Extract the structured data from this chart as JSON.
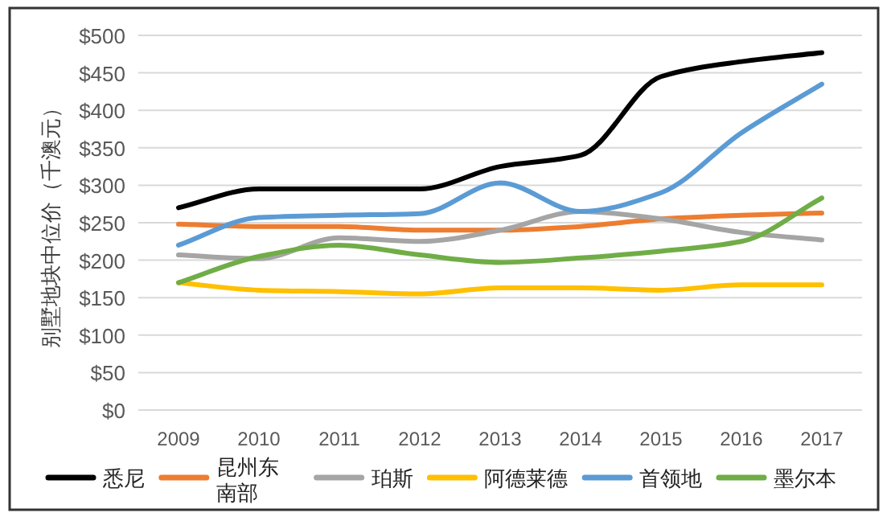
{
  "chart_data": {
    "type": "line",
    "ylabel": "别墅地块中位价（千澳元）",
    "categories": [
      "2009",
      "2010",
      "2011",
      "2012",
      "2013",
      "2014",
      "2015",
      "2016",
      "2017"
    ],
    "series": [
      {
        "name": "悉尼",
        "color": "#000000",
        "values": [
          270,
          295,
          295,
          295,
          325,
          340,
          445,
          465,
          477
        ]
      },
      {
        "name": "昆州东南部",
        "color": "#ed7d31",
        "values": [
          248,
          245,
          245,
          240,
          240,
          245,
          255,
          260,
          263
        ]
      },
      {
        "name": "珀斯",
        "color": "#a5a5a5",
        "values": [
          207,
          202,
          230,
          225,
          240,
          265,
          255,
          237,
          227
        ]
      },
      {
        "name": "阿德莱德",
        "color": "#ffc000",
        "values": [
          170,
          160,
          158,
          155,
          163,
          163,
          160,
          167,
          167
        ]
      },
      {
        "name": "首领地",
        "color": "#5b9bd5",
        "values": [
          220,
          257,
          260,
          262,
          303,
          265,
          290,
          370,
          435
        ]
      },
      {
        "name": "墨尔本",
        "color": "#70ad47",
        "values": [
          170,
          205,
          220,
          207,
          197,
          203,
          212,
          225,
          283
        ]
      }
    ],
    "ylim": [
      0,
      500
    ],
    "yticks": [
      {
        "value": 0,
        "label": "$0"
      },
      {
        "value": 50,
        "label": "$50"
      },
      {
        "value": 100,
        "label": "$100"
      },
      {
        "value": 150,
        "label": "$150"
      },
      {
        "value": 200,
        "label": "$200"
      },
      {
        "value": 250,
        "label": "$250"
      },
      {
        "value": 300,
        "label": "$300"
      },
      {
        "value": 350,
        "label": "$350"
      },
      {
        "value": 400,
        "label": "$400"
      },
      {
        "value": 450,
        "label": "$450"
      },
      {
        "value": 500,
        "label": "$500"
      }
    ],
    "grid": "y",
    "legend": "bottom"
  }
}
